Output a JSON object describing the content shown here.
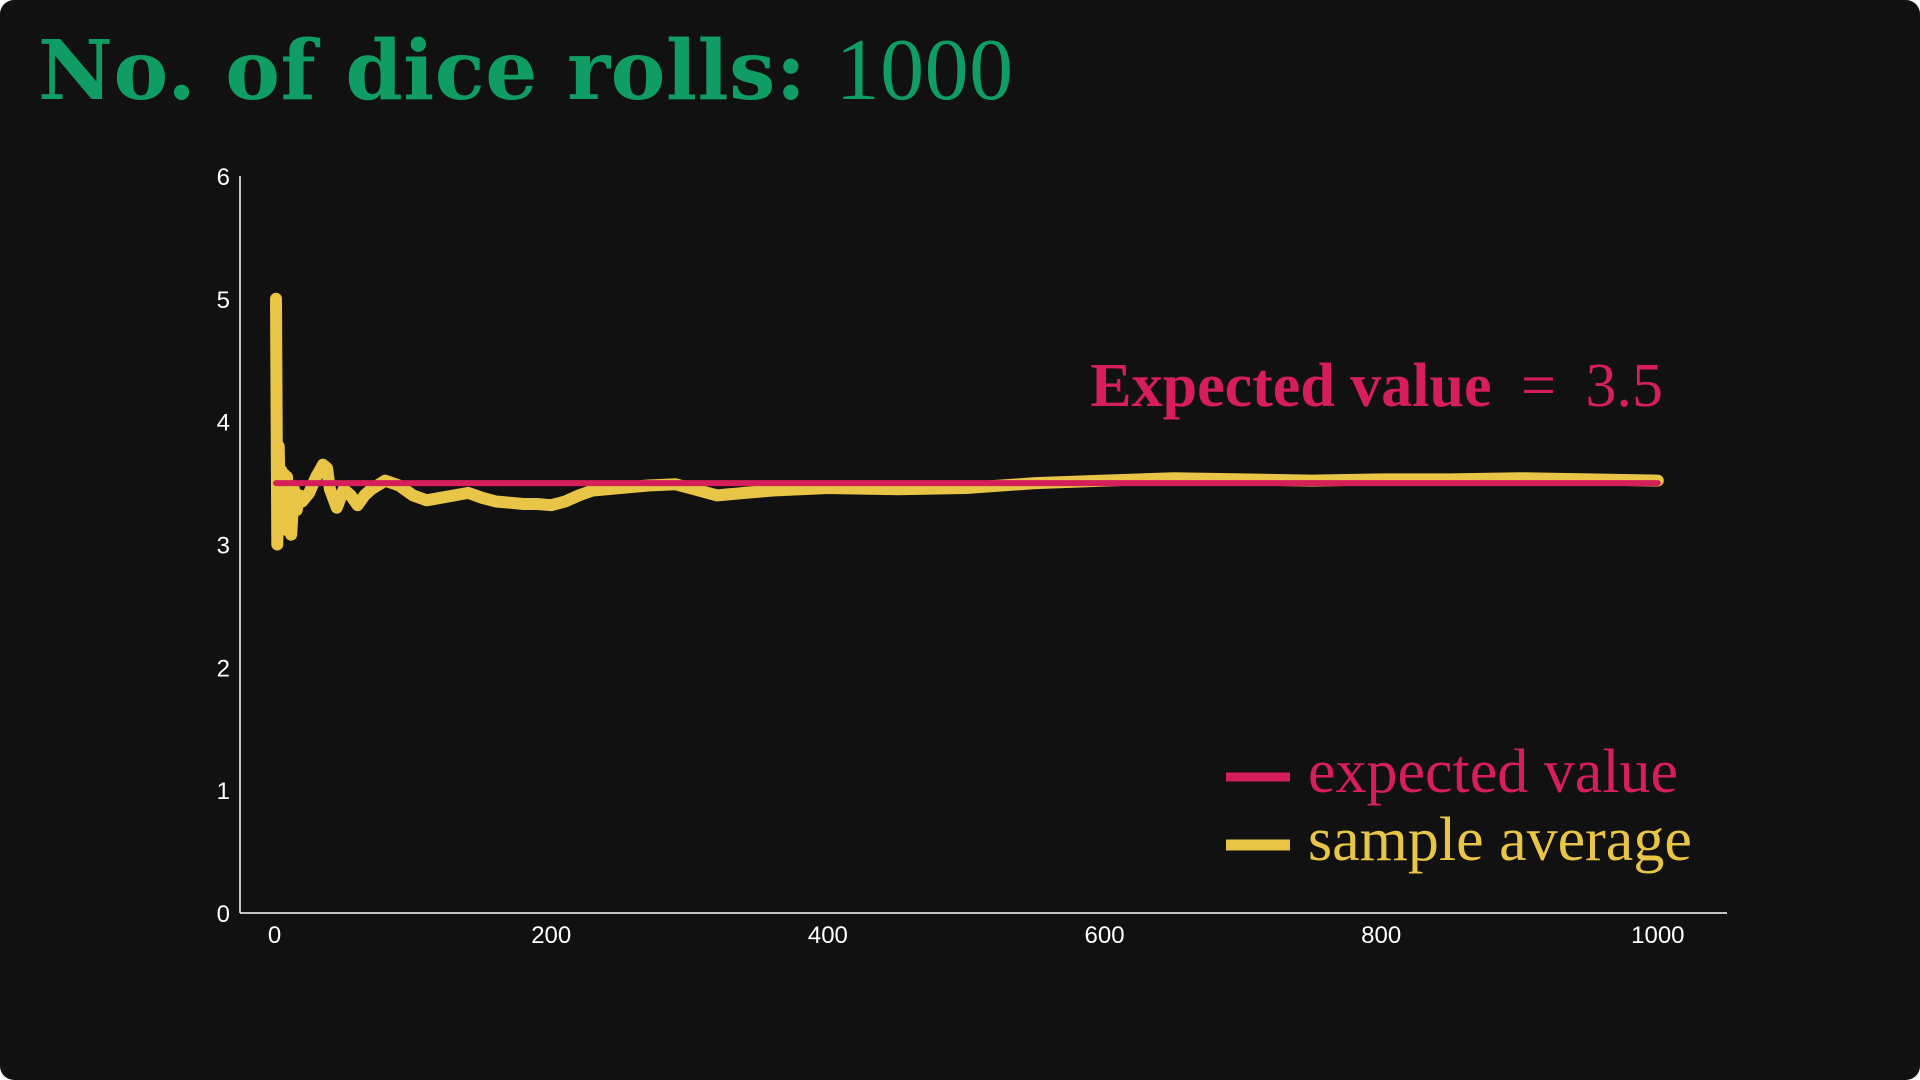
{
  "title": {
    "label": "No. of dice rolls:",
    "value": "1000",
    "color": "#0f9d63"
  },
  "colors": {
    "background": "#111111",
    "axis": "#ffffff",
    "expected": "#d61f5a",
    "sample": "#e8c547"
  },
  "chart_data": {
    "type": "line",
    "title": "No. of dice rolls: 1000",
    "xlabel": "",
    "ylabel": "",
    "xlim": [
      -25,
      1050
    ],
    "ylim": [
      0,
      6
    ],
    "xticks": [
      0,
      200,
      400,
      600,
      800,
      1000
    ],
    "yticks": [
      0,
      1,
      2,
      3,
      4,
      5,
      6
    ],
    "grid": false,
    "legend_position": "bottom-right",
    "series": [
      {
        "name": "expected value",
        "color": "#d61f5a",
        "x": [
          1,
          1000
        ],
        "values": [
          3.5,
          3.5
        ]
      },
      {
        "name": "sample average",
        "color": "#e8c547",
        "x": [
          1,
          2,
          3,
          4,
          5,
          6,
          7,
          8,
          9,
          10,
          12,
          14,
          16,
          18,
          20,
          25,
          30,
          35,
          38,
          40,
          45,
          50,
          55,
          60,
          65,
          70,
          80,
          90,
          100,
          110,
          120,
          130,
          140,
          150,
          160,
          170,
          180,
          190,
          200,
          210,
          220,
          230,
          250,
          270,
          290,
          300,
          320,
          340,
          360,
          380,
          400,
          450,
          500,
          550,
          600,
          650,
          700,
          750,
          800,
          850,
          900,
          950,
          1000
        ],
        "values": [
          5.0,
          3.0,
          3.8,
          3.25,
          3.6,
          3.33,
          3.57,
          3.12,
          3.55,
          3.3,
          3.08,
          3.45,
          3.28,
          3.4,
          3.35,
          3.42,
          3.55,
          3.65,
          3.62,
          3.45,
          3.3,
          3.45,
          3.4,
          3.32,
          3.4,
          3.45,
          3.52,
          3.48,
          3.4,
          3.36,
          3.38,
          3.4,
          3.42,
          3.38,
          3.35,
          3.34,
          3.33,
          3.33,
          3.32,
          3.35,
          3.4,
          3.44,
          3.46,
          3.48,
          3.49,
          3.46,
          3.4,
          3.42,
          3.44,
          3.45,
          3.46,
          3.45,
          3.46,
          3.5,
          3.52,
          3.54,
          3.53,
          3.52,
          3.53,
          3.53,
          3.54,
          3.53,
          3.52
        ]
      }
    ],
    "annotations": [
      {
        "text": "Expected value = 3.5",
        "label": "Expected value",
        "operator": "=",
        "value": "3.5",
        "color": "#d61f5a"
      }
    ]
  }
}
